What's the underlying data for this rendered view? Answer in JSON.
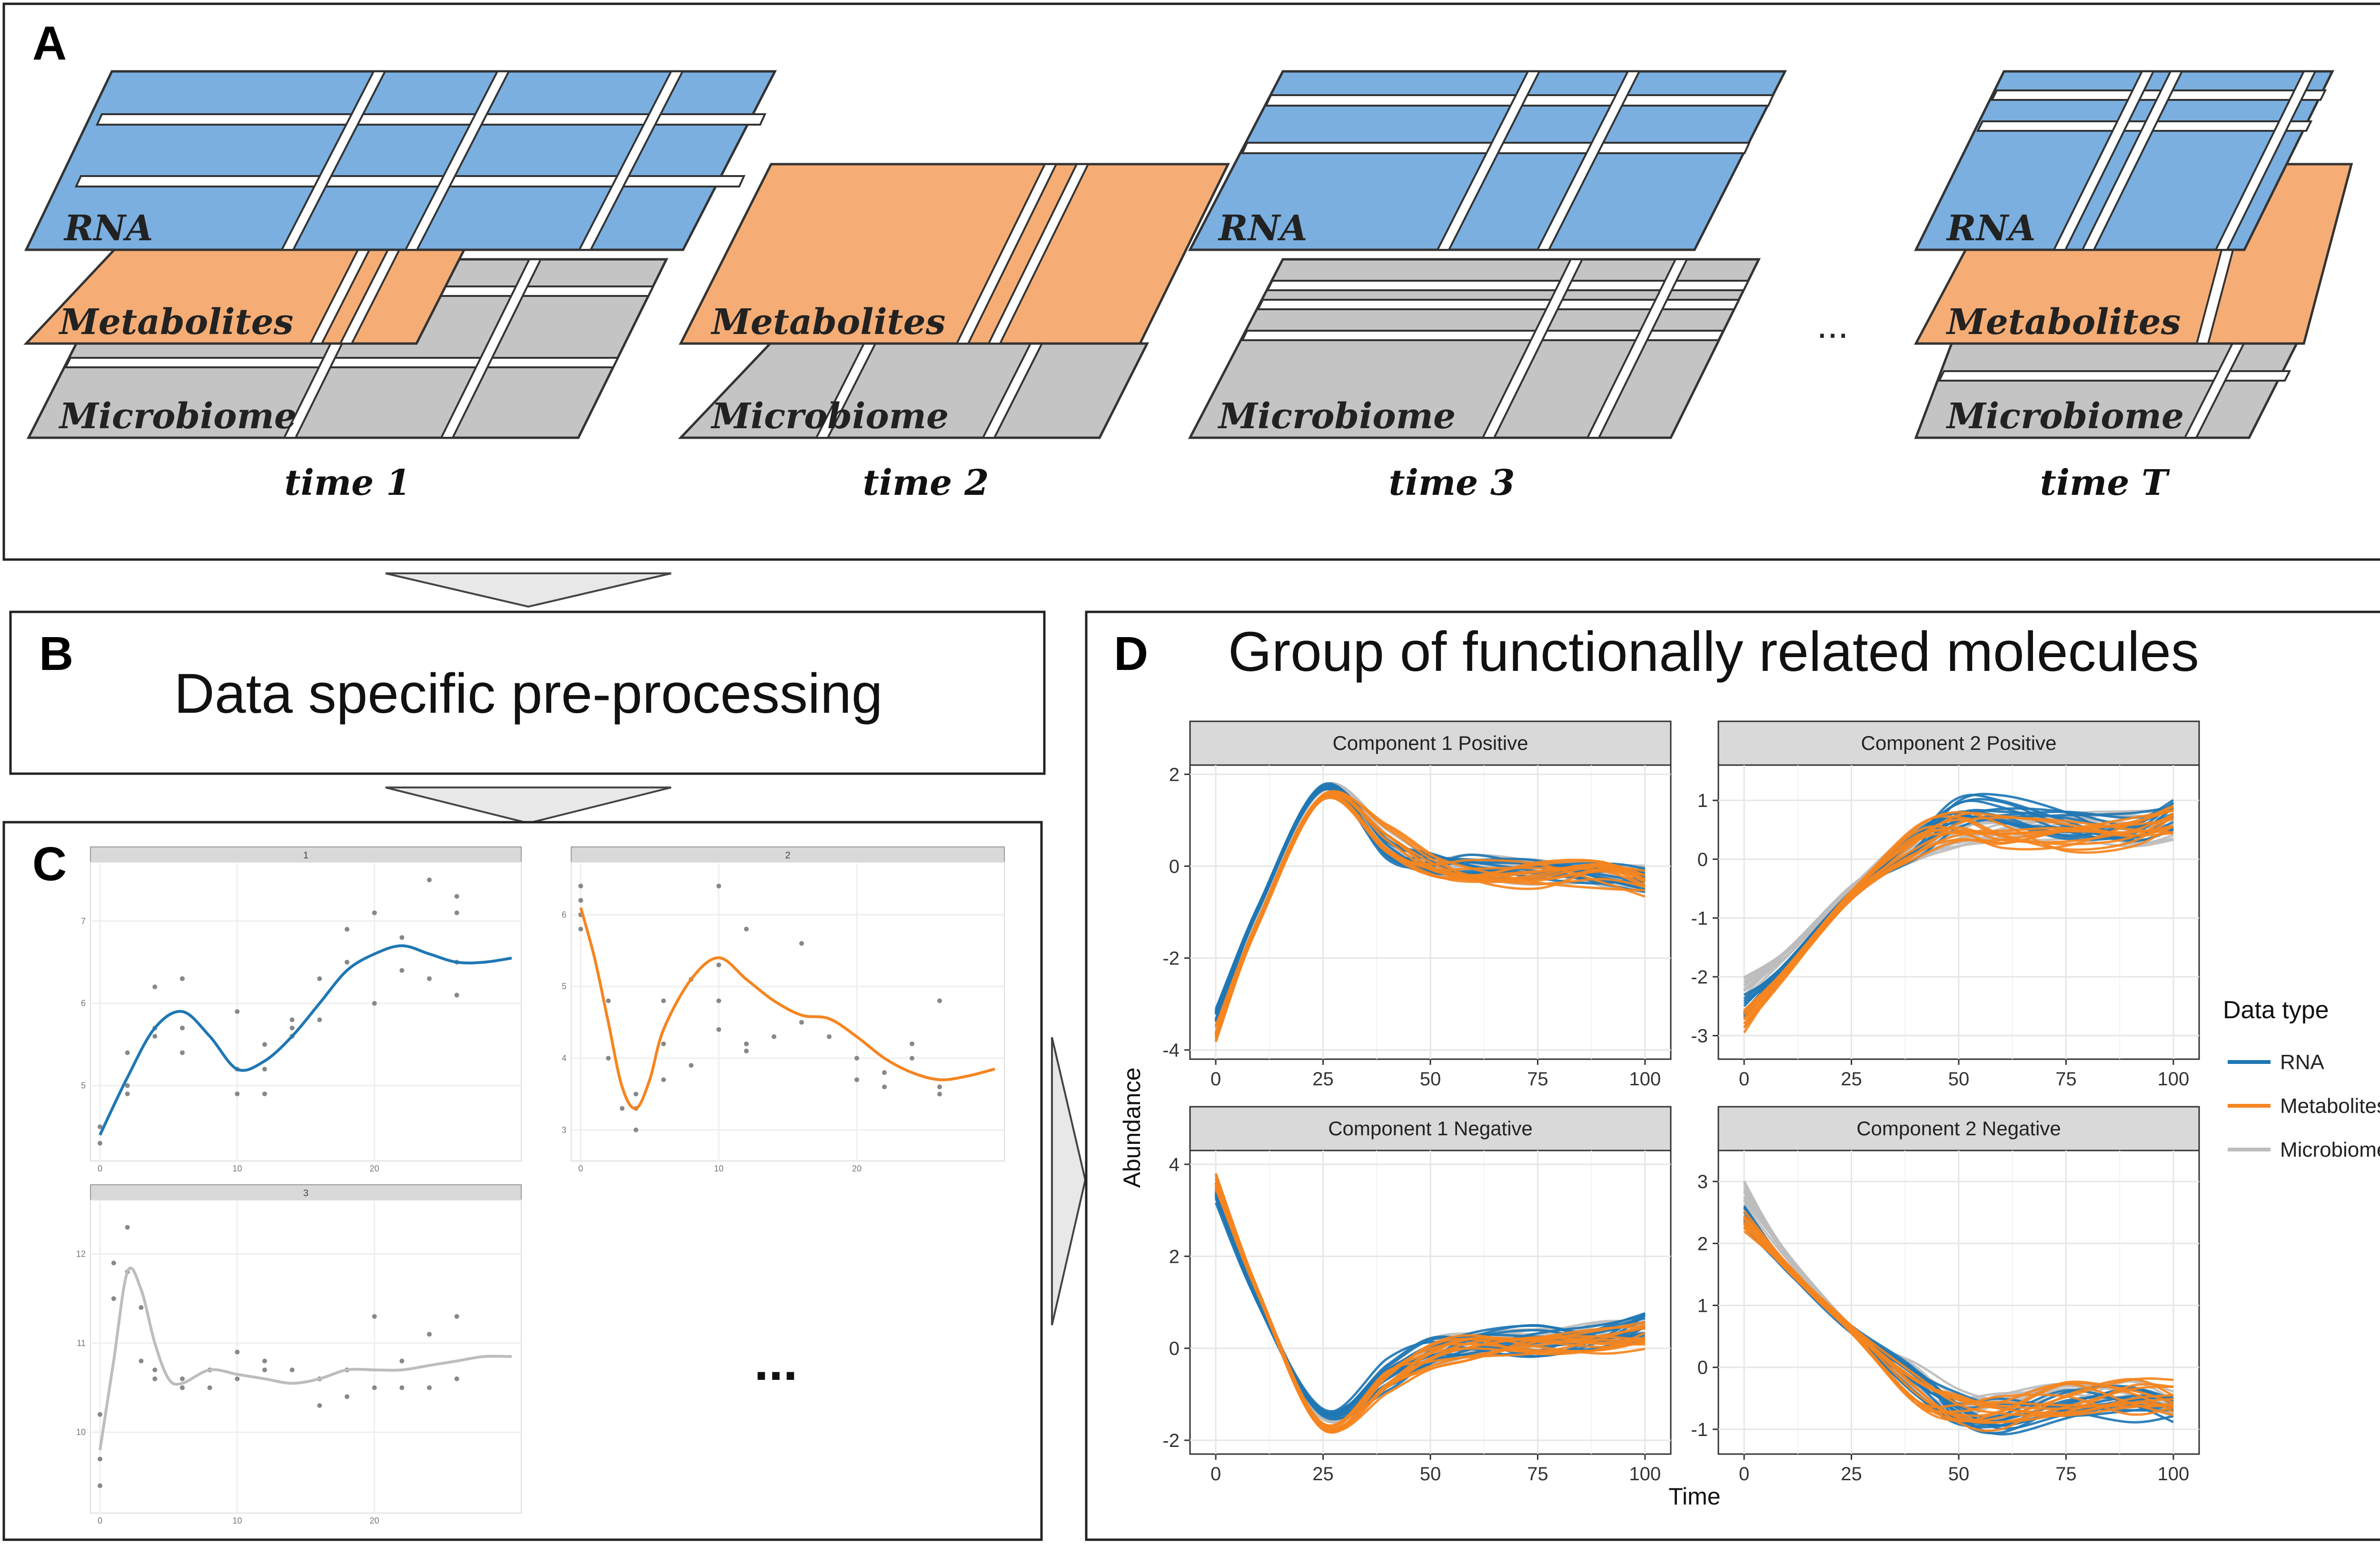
{
  "colors": {
    "rna": "#1f77b4",
    "rna_sheet": "#7aafe0",
    "metabolites": "#f58520",
    "metabolites_sheet": "#f5ad75",
    "microbiome": "#bdbdbd",
    "microbiome_sheet": "#c4c4c4",
    "strip": "#d9d9d9",
    "grid": "#ebebeb"
  },
  "panel_a": {
    "letter": "A",
    "layer_labels": {
      "rna": "RNA",
      "metabolites": "Metabolites",
      "microbiome": "Microbiome"
    },
    "times": [
      "time 1",
      "time 2",
      "time 3",
      "time T"
    ],
    "ellipsis": "..."
  },
  "panel_b": {
    "letter": "B",
    "title": "Data specific pre-processing"
  },
  "panel_c": {
    "letter": "C",
    "ellipsis": "...",
    "mini_plots": [
      {
        "strip": "1",
        "color": "rna",
        "x_ticks": [
          "0",
          "10",
          "20"
        ],
        "y_ticks": [
          "5",
          "6",
          "7"
        ],
        "xlim": [
          0,
          30
        ],
        "ylim": [
          4.2,
          7.6
        ],
        "curve": [
          [
            0,
            4.4
          ],
          [
            2,
            5.1
          ],
          [
            4,
            5.7
          ],
          [
            6,
            5.9
          ],
          [
            8,
            5.6
          ],
          [
            10,
            5.2
          ],
          [
            12,
            5.3
          ],
          [
            14,
            5.6
          ],
          [
            16,
            6.0
          ],
          [
            18,
            6.4
          ],
          [
            20,
            6.6
          ],
          [
            22,
            6.7
          ],
          [
            24,
            6.6
          ],
          [
            26,
            6.5
          ],
          [
            28,
            6.5
          ],
          [
            30,
            6.55
          ]
        ],
        "points": [
          [
            0,
            4.3
          ],
          [
            0,
            4.5
          ],
          [
            2,
            4.9
          ],
          [
            2,
            5.0
          ],
          [
            2,
            5.4
          ],
          [
            4,
            5.7
          ],
          [
            4,
            5.6
          ],
          [
            4,
            6.2
          ],
          [
            6,
            5.4
          ],
          [
            6,
            5.7
          ],
          [
            6,
            6.3
          ],
          [
            6,
            6.3
          ],
          [
            10,
            4.9
          ],
          [
            10,
            5.2
          ],
          [
            10,
            5.9
          ],
          [
            12,
            4.9
          ],
          [
            12,
            5.2
          ],
          [
            12,
            5.5
          ],
          [
            14,
            5.6
          ],
          [
            14,
            5.7
          ],
          [
            14,
            5.8
          ],
          [
            16,
            5.8
          ],
          [
            16,
            6.3
          ],
          [
            18,
            6.5
          ],
          [
            18,
            6.9
          ],
          [
            20,
            6.0
          ],
          [
            20,
            7.1
          ],
          [
            20,
            7.1
          ],
          [
            22,
            6.4
          ],
          [
            22,
            6.8
          ],
          [
            24,
            6.3
          ],
          [
            24,
            7.5
          ],
          [
            26,
            6.1
          ],
          [
            26,
            6.5
          ],
          [
            26,
            7.1
          ],
          [
            26,
            7.3
          ]
        ]
      },
      {
        "strip": "2",
        "color": "metabolites",
        "x_ticks": [
          "0",
          "10",
          "20"
        ],
        "y_ticks": [
          "3",
          "4",
          "5",
          "6"
        ],
        "xlim": [
          0,
          30
        ],
        "ylim": [
          2.7,
          6.6
        ],
        "curve": [
          [
            0,
            6.1
          ],
          [
            1,
            5.4
          ],
          [
            2,
            4.5
          ],
          [
            3,
            3.6
          ],
          [
            4,
            3.3
          ],
          [
            5,
            3.7
          ],
          [
            6,
            4.4
          ],
          [
            8,
            5.1
          ],
          [
            10,
            5.4
          ],
          [
            12,
            5.1
          ],
          [
            14,
            4.8
          ],
          [
            16,
            4.6
          ],
          [
            18,
            4.55
          ],
          [
            20,
            4.3
          ],
          [
            22,
            4.0
          ],
          [
            24,
            3.8
          ],
          [
            26,
            3.7
          ],
          [
            28,
            3.75
          ],
          [
            30,
            3.85
          ]
        ],
        "points": [
          [
            0,
            5.8
          ],
          [
            0,
            6.0
          ],
          [
            0,
            6.2
          ],
          [
            0,
            6.4
          ],
          [
            2,
            4.0
          ],
          [
            2,
            4.8
          ],
          [
            3,
            3.3
          ],
          [
            4,
            3.0
          ],
          [
            4,
            3.3
          ],
          [
            4,
            3.5
          ],
          [
            6,
            3.7
          ],
          [
            6,
            4.2
          ],
          [
            6,
            4.8
          ],
          [
            8,
            3.9
          ],
          [
            8,
            5.1
          ],
          [
            10,
            4.4
          ],
          [
            10,
            4.8
          ],
          [
            10,
            5.3
          ],
          [
            10,
            6.4
          ],
          [
            12,
            4.1
          ],
          [
            12,
            4.2
          ],
          [
            12,
            5.8
          ],
          [
            14,
            4.3
          ],
          [
            16,
            4.5
          ],
          [
            16,
            5.6
          ],
          [
            18,
            4.3
          ],
          [
            20,
            3.7
          ],
          [
            20,
            4.0
          ],
          [
            22,
            3.6
          ],
          [
            22,
            3.8
          ],
          [
            24,
            4.0
          ],
          [
            24,
            4.2
          ],
          [
            26,
            3.5
          ],
          [
            26,
            3.6
          ],
          [
            26,
            4.8
          ]
        ]
      },
      {
        "strip": "3",
        "color": "microbiome",
        "x_ticks": [
          "0",
          "10",
          "20"
        ],
        "y_ticks": [
          "10",
          "11",
          "12"
        ],
        "xlim": [
          0,
          30
        ],
        "ylim": [
          9.2,
          12.5
        ],
        "curve": [
          [
            0,
            9.8
          ],
          [
            1,
            10.8
          ],
          [
            2,
            11.8
          ],
          [
            3,
            11.6
          ],
          [
            4,
            11.0
          ],
          [
            5,
            10.6
          ],
          [
            6,
            10.55
          ],
          [
            8,
            10.7
          ],
          [
            10,
            10.65
          ],
          [
            12,
            10.6
          ],
          [
            14,
            10.55
          ],
          [
            16,
            10.6
          ],
          [
            18,
            10.7
          ],
          [
            20,
            10.7
          ],
          [
            22,
            10.7
          ],
          [
            24,
            10.75
          ],
          [
            26,
            10.8
          ],
          [
            28,
            10.85
          ],
          [
            30,
            10.85
          ]
        ],
        "points": [
          [
            0,
            9.4
          ],
          [
            0,
            9.7
          ],
          [
            0,
            10.2
          ],
          [
            1,
            11.5
          ],
          [
            1,
            11.9
          ],
          [
            2,
            12.3
          ],
          [
            2,
            11.8
          ],
          [
            3,
            11.4
          ],
          [
            3,
            10.8
          ],
          [
            4,
            10.6
          ],
          [
            4,
            10.7
          ],
          [
            6,
            10.5
          ],
          [
            6,
            10.6
          ],
          [
            8,
            10.5
          ],
          [
            8,
            10.7
          ],
          [
            10,
            10.6
          ],
          [
            10,
            10.9
          ],
          [
            12,
            10.7
          ],
          [
            12,
            10.8
          ],
          [
            14,
            10.7
          ],
          [
            16,
            10.3
          ],
          [
            16,
            10.6
          ],
          [
            18,
            10.4
          ],
          [
            18,
            10.7
          ],
          [
            20,
            10.5
          ],
          [
            20,
            11.3
          ],
          [
            22,
            10.5
          ],
          [
            22,
            10.8
          ],
          [
            24,
            10.5
          ],
          [
            24,
            11.1
          ],
          [
            26,
            10.6
          ],
          [
            26,
            11.3
          ]
        ]
      }
    ]
  },
  "panel_d": {
    "letter": "D",
    "title": "Group of functionally related molecules"
  },
  "chart_data": {
    "type": "line",
    "xlabel": "Time",
    "ylabel": "Abundance",
    "legend": {
      "title": "Data type",
      "placement": "right",
      "entries": [
        {
          "name": "RNA",
          "color": "#1f77b4"
        },
        {
          "name": "Metabolites",
          "color": "#f58520"
        },
        {
          "name": "Microbiome",
          "color": "#bdbdbd"
        }
      ]
    },
    "x": [
      0,
      10,
      25,
      40,
      50,
      60,
      75,
      90,
      100
    ],
    "xticks": [
      0,
      25,
      50,
      75,
      100
    ],
    "grid": true,
    "facets": [
      {
        "title": "Component 1 Positive",
        "ylim": [
          -4.2,
          2.2
        ],
        "yticks": [
          -4,
          -2,
          0,
          2
        ],
        "series": [
          {
            "name": "RNA",
            "values": [
              -3.3,
              -0.9,
              1.7,
              0.4,
              0.1,
              0.0,
              -0.1,
              -0.2,
              -0.3
            ]
          },
          {
            "name": "Metabolites",
            "values": [
              -3.7,
              -1.2,
              1.5,
              0.6,
              0.1,
              -0.1,
              -0.2,
              -0.2,
              -0.4
            ]
          },
          {
            "name": "Microbiome",
            "values": [
              -3.5,
              -1.0,
              1.7,
              0.5,
              0.1,
              0.0,
              -0.1,
              -0.2,
              -0.3
            ]
          }
        ]
      },
      {
        "title": "Component 2 Positive",
        "ylim": [
          -3.4,
          1.6
        ],
        "yticks": [
          -3,
          -2,
          -1,
          0,
          1
        ],
        "series": [
          {
            "name": "RNA",
            "values": [
              -2.5,
              -1.8,
              -0.6,
              0.3,
              0.8,
              0.8,
              0.6,
              0.5,
              0.8
            ]
          },
          {
            "name": "Metabolites",
            "values": [
              -2.8,
              -1.9,
              -0.6,
              0.3,
              0.6,
              0.5,
              0.4,
              0.4,
              0.6
            ]
          },
          {
            "name": "Microbiome",
            "values": [
              -2.2,
              -1.6,
              -0.5,
              0.3,
              0.5,
              0.5,
              0.5,
              0.5,
              0.6
            ]
          }
        ]
      },
      {
        "title": "Component 1 Negative",
        "ylim": [
          -2.3,
          4.3
        ],
        "yticks": [
          -2,
          0,
          2,
          4
        ],
        "series": [
          {
            "name": "RNA",
            "values": [
              3.4,
              1.0,
              -1.4,
              -0.6,
              -0.1,
              0.1,
              0.2,
              0.3,
              0.5
            ]
          },
          {
            "name": "Metabolites",
            "values": [
              3.6,
              1.2,
              -1.7,
              -0.7,
              -0.2,
              0.0,
              0.1,
              0.2,
              0.3
            ]
          },
          {
            "name": "Microbiome",
            "values": [
              3.5,
              1.1,
              -1.5,
              -0.6,
              -0.1,
              0.1,
              0.2,
              0.3,
              0.4
            ]
          }
        ]
      },
      {
        "title": "Component 2 Negative",
        "ylim": [
          -1.4,
          3.5
        ],
        "yticks": [
          -1,
          0,
          1,
          2,
          3
        ],
        "series": [
          {
            "name": "RNA",
            "values": [
              2.5,
              1.6,
              0.6,
              -0.2,
              -0.7,
              -0.8,
              -0.6,
              -0.6,
              -0.7
            ]
          },
          {
            "name": "Metabolites",
            "values": [
              2.3,
              1.6,
              0.6,
              -0.3,
              -0.6,
              -0.7,
              -0.6,
              -0.5,
              -0.5
            ]
          },
          {
            "name": "Microbiome",
            "values": [
              2.8,
              1.8,
              0.6,
              -0.2,
              -0.6,
              -0.6,
              -0.5,
              -0.5,
              -0.6
            ]
          }
        ]
      }
    ]
  }
}
